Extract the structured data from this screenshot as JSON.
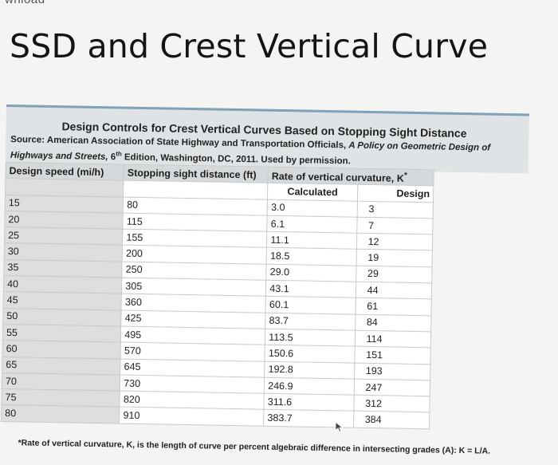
{
  "top_clip": "whload",
  "slide": {
    "title": "SSD and Crest Vertical Curve"
  },
  "table": {
    "caption": "Design Controls for Crest Vertical Curves Based on Stopping Sight Distance",
    "source_label": "Source:",
    "source_text": " American Association of State Highway and Transportation Officials, ",
    "source_pub": "A Policy on Geometric Design of Highways and Streets,",
    "source_edition": " 6",
    "source_sup": "th",
    "source_rest": " Edition, Washington, DC, 2011. Used by permission.",
    "headers": {
      "speed": "Design speed (mi/h)",
      "ssd": "Stopping sight distance (ft)",
      "rate": "Rate of vertical curvature, K",
      "rate_mark": "*",
      "calculated": "Calculated",
      "design": "Design"
    },
    "rows": [
      {
        "speed": "15",
        "ssd": "80",
        "calc": "3.0",
        "design": "3"
      },
      {
        "speed": "20",
        "ssd": "115",
        "calc": "6.1",
        "design": "7"
      },
      {
        "speed": "25",
        "ssd": "155",
        "calc": "11.1",
        "design": "12"
      },
      {
        "speed": "30",
        "ssd": "200",
        "calc": "18.5",
        "design": "19"
      },
      {
        "speed": "35",
        "ssd": "250",
        "calc": "29.0",
        "design": "29"
      },
      {
        "speed": "40",
        "ssd": "305",
        "calc": "43.1",
        "design": "44"
      },
      {
        "speed": "45",
        "ssd": "360",
        "calc": "60.1",
        "design": "61"
      },
      {
        "speed": "50",
        "ssd": "425",
        "calc": "83.7",
        "design": "84"
      },
      {
        "speed": "55",
        "ssd": "495",
        "calc": "113.5",
        "design": "114"
      },
      {
        "speed": "60",
        "ssd": "570",
        "calc": "150.6",
        "design": "151"
      },
      {
        "speed": "65",
        "ssd": "645",
        "calc": "192.8",
        "design": "193"
      },
      {
        "speed": "70",
        "ssd": "730",
        "calc": "246.9",
        "design": "247"
      },
      {
        "speed": "75",
        "ssd": "820",
        "calc": "311.6",
        "design": "312"
      },
      {
        "speed": "80",
        "ssd": "910",
        "calc": "383.7",
        "design": "384"
      }
    ],
    "footnote_mark": "*",
    "footnote_text": "Rate of vertical curvature, K, is the length of curve per percent algebraic difference in intersecting grades (A): K = L/A."
  },
  "icons": {
    "cursor": "mouse-pointer-icon"
  }
}
